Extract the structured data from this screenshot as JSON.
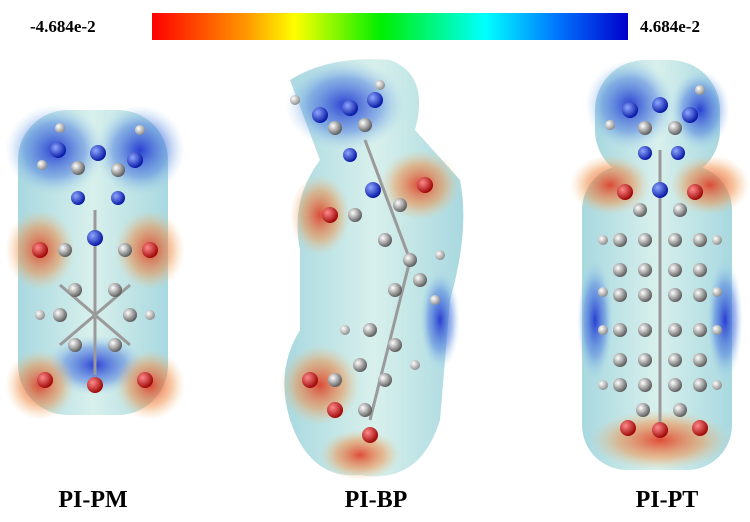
{
  "colorbar": {
    "min_label": "-4.684e-2",
    "max_label": "4.684e-2"
  },
  "molecules": [
    {
      "label": "PI-PM"
    },
    {
      "label": "PI-BP"
    },
    {
      "label": "PI-PT"
    }
  ]
}
